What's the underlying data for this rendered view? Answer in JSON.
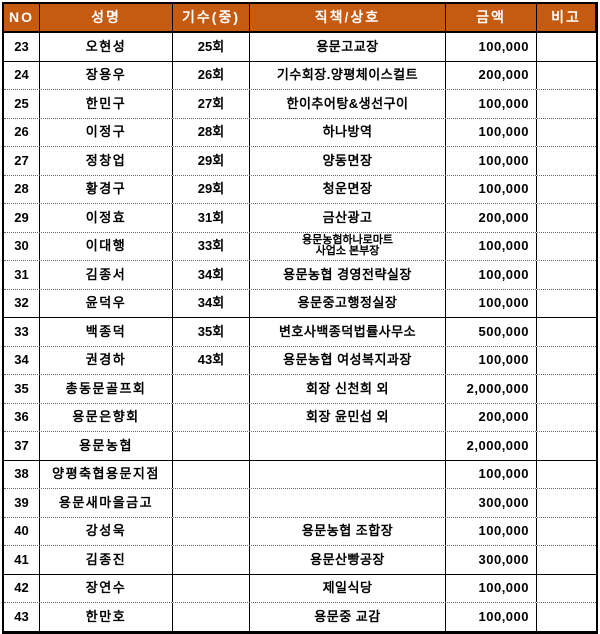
{
  "colors": {
    "header_bg": "#C55A11",
    "header_text": "#FFFFFF",
    "grid_border": "#000000",
    "dotted_border": "#666666",
    "text": "#000000"
  },
  "table": {
    "columns": [
      {
        "key": "no",
        "label": "NO"
      },
      {
        "key": "name",
        "label": "성명"
      },
      {
        "key": "gisu",
        "label": "기수(중)"
      },
      {
        "key": "title",
        "label": "직책/상호"
      },
      {
        "key": "amount",
        "label": "금액"
      },
      {
        "key": "note",
        "label": "비고"
      }
    ],
    "rows": [
      {
        "no": "23",
        "name": "오현성",
        "gisu": "25회",
        "title": "용문고교장",
        "amount": "100,000",
        "note": "",
        "divider": "solid"
      },
      {
        "no": "24",
        "name": "장용우",
        "gisu": "26회",
        "title": "기수회장.양평체이스컬트",
        "amount": "200,000",
        "note": "",
        "divider": "dotted"
      },
      {
        "no": "25",
        "name": "한민구",
        "gisu": "27회",
        "title": "한이추어탕&생선구이",
        "amount": "100,000",
        "note": "",
        "divider": "dotted"
      },
      {
        "no": "26",
        "name": "이정구",
        "gisu": "28회",
        "title": "하나방역",
        "amount": "100,000",
        "note": "",
        "divider": "dotted"
      },
      {
        "no": "27",
        "name": "정창업",
        "gisu": "29회",
        "title": "양동면장",
        "amount": "100,000",
        "note": "",
        "divider": "dotted"
      },
      {
        "no": "28",
        "name": "황경구",
        "gisu": "29회",
        "title": "청운면장",
        "amount": "100,000",
        "note": "",
        "divider": "dotted"
      },
      {
        "no": "29",
        "name": "이정효",
        "gisu": "31회",
        "title": "금산광고",
        "amount": "200,000",
        "note": "",
        "divider": "dotted"
      },
      {
        "no": "30",
        "name": "이대행",
        "gisu": "33회",
        "title": "용문농협하나로마트\n사업소 본부장",
        "amount": "100,000",
        "note": "",
        "divider": "dotted"
      },
      {
        "no": "31",
        "name": "김종서",
        "gisu": "34회",
        "title": "용문농협 경영전략실장",
        "amount": "100,000",
        "note": "",
        "divider": "dotted"
      },
      {
        "no": "32",
        "name": "윤덕우",
        "gisu": "34회",
        "title": "용문중고행정실장",
        "amount": "100,000",
        "note": "",
        "divider": "solid"
      },
      {
        "no": "33",
        "name": "백종덕",
        "gisu": "35회",
        "title": "변호사백종덕법률사무소",
        "amount": "500,000",
        "note": "",
        "divider": "dotted"
      },
      {
        "no": "34",
        "name": "권경하",
        "gisu": "43회",
        "title": "용문농협 여성복지과장",
        "amount": "100,000",
        "note": "",
        "divider": "dotted"
      },
      {
        "no": "35",
        "name": "총동문골프회",
        "gisu": "",
        "title": "회장 신천희 외",
        "amount": "2,000,000",
        "note": "",
        "divider": "dotted"
      },
      {
        "no": "36",
        "name": "용문은향회",
        "gisu": "",
        "title": "회장 윤민섭 외",
        "amount": "200,000",
        "note": "",
        "divider": "dotted"
      },
      {
        "no": "37",
        "name": "용문농협",
        "gisu": "",
        "title": "",
        "amount": "2,000,000",
        "note": "",
        "divider": "solid"
      },
      {
        "no": "38",
        "name": "양평축협용문지점",
        "gisu": "",
        "title": "",
        "amount": "100,000",
        "note": "",
        "divider": "dotted"
      },
      {
        "no": "39",
        "name": "용문새마을금고",
        "gisu": "",
        "title": "",
        "amount": "300,000",
        "note": "",
        "divider": "dotted"
      },
      {
        "no": "40",
        "name": "강성욱",
        "gisu": "",
        "title": "용문농협 조합장",
        "amount": "100,000",
        "note": "",
        "divider": "dotted"
      },
      {
        "no": "41",
        "name": "김종진",
        "gisu": "",
        "title": "용문산빵공장",
        "amount": "300,000",
        "note": "",
        "divider": "solid"
      },
      {
        "no": "42",
        "name": "장연수",
        "gisu": "",
        "title": "제일식당",
        "amount": "100,000",
        "note": "",
        "divider": "dotted"
      },
      {
        "no": "43",
        "name": "한만호",
        "gisu": "",
        "title": "용문중 교감",
        "amount": "100,000",
        "note": "",
        "divider": "none"
      }
    ]
  }
}
